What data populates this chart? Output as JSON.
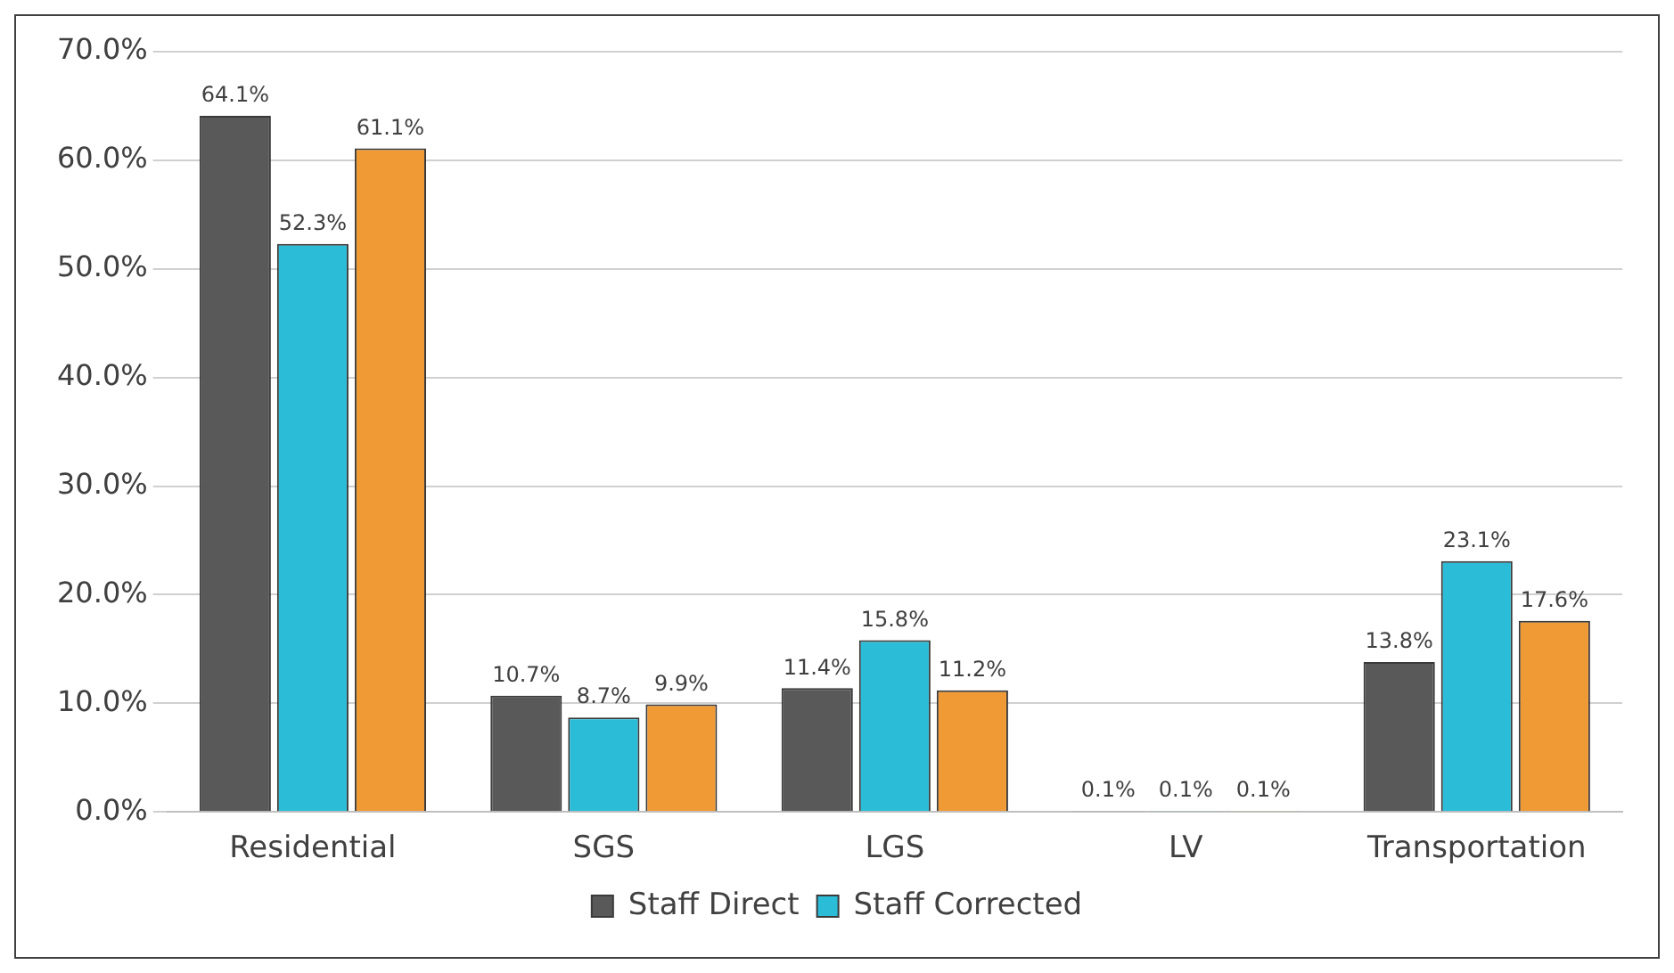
{
  "chart_data": {
    "type": "bar",
    "categories": [
      "Residential",
      "SGS",
      "LGS",
      "LV",
      "Transportation"
    ],
    "series": [
      {
        "name": "Staff Direct",
        "color": "#595959",
        "values": [
          64.1,
          10.7,
          11.4,
          0.1,
          13.8
        ],
        "value_labels": [
          "64.1%",
          "10.7%",
          "11.4%",
          "0.1%",
          "13.8%"
        ]
      },
      {
        "name": "Staff Corrected",
        "color": "#2bbcd8",
        "values": [
          52.3,
          8.7,
          15.8,
          0.1,
          23.1
        ],
        "value_labels": [
          "52.3%",
          "8.7%",
          "15.8%",
          "0.1%",
          "23.1%"
        ]
      },
      {
        "color": "#f09a36",
        "values": [
          61.1,
          9.9,
          11.2,
          0.1,
          17.6
        ],
        "value_labels": [
          "61.1%",
          "9.9%",
          "11.2%",
          "0.1%",
          "17.6%"
        ]
      }
    ],
    "ylim": [
      0,
      70
    ],
    "yticks": [
      {
        "value": 0,
        "label": "0.0%"
      },
      {
        "value": 10,
        "label": "10.0%"
      },
      {
        "value": 20,
        "label": "20.0%"
      },
      {
        "value": 30,
        "label": "30.0%"
      },
      {
        "value": 40,
        "label": "40.0%"
      },
      {
        "value": 50,
        "label": "50.0%"
      },
      {
        "value": 60,
        "label": "60.0%"
      },
      {
        "value": 70,
        "label": "70.0%"
      }
    ],
    "grid": "y",
    "legend": "bottom"
  }
}
